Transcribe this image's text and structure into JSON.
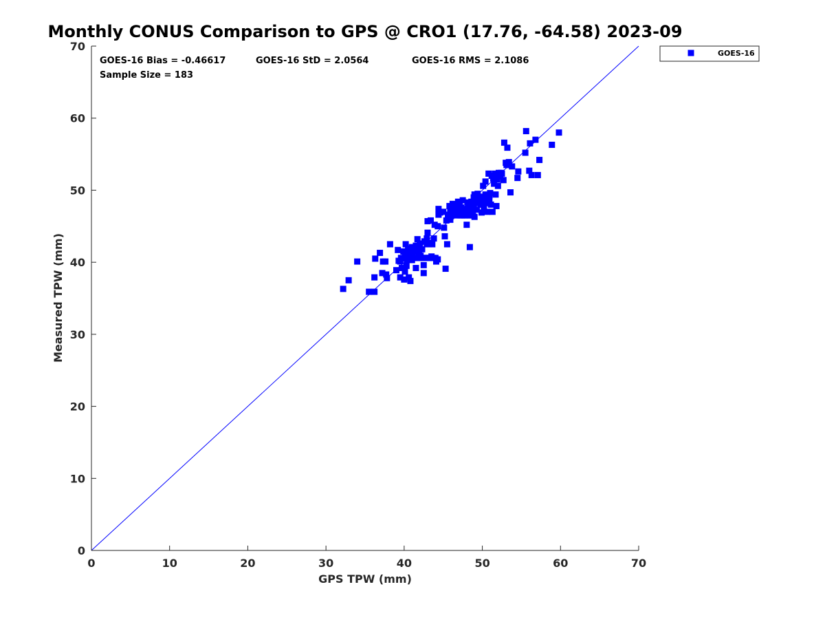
{
  "colors": {
    "series": "#0000ff",
    "axis": "#262626",
    "background": "#ffffff"
  },
  "chart_data": {
    "type": "scatter",
    "title": "Monthly CONUS Comparison to GPS @ CRO1 (17.76, -64.58) 2023-09",
    "xlabel": "GPS TPW (mm)",
    "ylabel": "Measured TPW (mm)",
    "xlim": [
      0,
      70
    ],
    "ylim": [
      0,
      70
    ],
    "xticks": [
      "0",
      "10",
      "20",
      "30",
      "40",
      "50",
      "60",
      "70"
    ],
    "yticks": [
      "0",
      "10",
      "20",
      "30",
      "40",
      "50",
      "60",
      "70"
    ],
    "grid": false,
    "legend_position": "outside-top-right",
    "stats": {
      "bias": "GOES-16 Bias = -0.46617",
      "std": "GOES-16 StD = 2.0564",
      "rms": "GOES-16 RMS = 2.1086",
      "sample": "Sample Size = 183"
    },
    "reference_line": {
      "x": [
        0,
        70
      ],
      "y": [
        0,
        70
      ]
    },
    "series": [
      {
        "name": "GOES-16",
        "marker": "square",
        "color": "#0000ff",
        "points": [
          [
            32.2,
            36.3
          ],
          [
            32.9,
            37.5
          ],
          [
            34.0,
            40.1
          ],
          [
            35.5,
            35.9
          ],
          [
            36.2,
            35.9
          ],
          [
            36.2,
            37.9
          ],
          [
            36.3,
            40.5
          ],
          [
            36.9,
            41.3
          ],
          [
            37.2,
            38.5
          ],
          [
            37.3,
            40.1
          ],
          [
            37.6,
            40.1
          ],
          [
            37.7,
            38.3
          ],
          [
            37.8,
            37.8
          ],
          [
            38.2,
            42.5
          ],
          [
            39.0,
            38.9
          ],
          [
            39.2,
            41.7
          ],
          [
            39.5,
            37.9
          ],
          [
            39.5,
            40.1
          ],
          [
            39.7,
            39.2
          ],
          [
            39.8,
            40.5
          ],
          [
            39.9,
            41.5
          ],
          [
            40.0,
            37.6
          ],
          [
            40.1,
            38.7
          ],
          [
            40.1,
            41.1
          ],
          [
            40.2,
            42.5
          ],
          [
            40.3,
            39.5
          ],
          [
            40.4,
            40.3
          ],
          [
            40.5,
            41.0
          ],
          [
            40.5,
            41.9
          ],
          [
            40.6,
            37.9
          ],
          [
            40.7,
            40.6
          ],
          [
            40.8,
            37.4
          ],
          [
            40.8,
            41.6
          ],
          [
            41.0,
            40.3
          ],
          [
            41.0,
            42.1
          ],
          [
            41.1,
            40.9
          ],
          [
            41.2,
            40.6
          ],
          [
            41.3,
            41.5
          ],
          [
            41.5,
            39.2
          ],
          [
            41.5,
            42.3
          ],
          [
            41.6,
            40.6
          ],
          [
            41.7,
            43.2
          ],
          [
            41.8,
            41.8
          ],
          [
            41.9,
            40.6
          ],
          [
            42.0,
            42.6
          ],
          [
            42.2,
            40.6
          ],
          [
            42.3,
            41.8
          ],
          [
            42.5,
            38.5
          ],
          [
            42.5,
            39.6
          ],
          [
            42.5,
            40.6
          ],
          [
            42.6,
            42.9
          ],
          [
            42.8,
            40.6
          ],
          [
            42.9,
            42.5
          ],
          [
            42.9,
            43.3
          ],
          [
            43.0,
            44.1
          ],
          [
            43.0,
            45.7
          ],
          [
            43.1,
            40.6
          ],
          [
            43.2,
            42.5
          ],
          [
            43.3,
            40.6
          ],
          [
            43.4,
            45.8
          ],
          [
            43.5,
            40.8
          ],
          [
            43.6,
            42.5
          ],
          [
            43.7,
            40.6
          ],
          [
            43.8,
            43.3
          ],
          [
            44.0,
            40.6
          ],
          [
            44.1,
            40.1
          ],
          [
            44.3,
            40.4
          ],
          [
            44.3,
            45.0
          ],
          [
            44.4,
            46.6
          ],
          [
            44.4,
            47.4
          ],
          [
            45.0,
            47.0
          ],
          [
            45.2,
            43.6
          ],
          [
            45.3,
            39.1
          ],
          [
            45.4,
            45.8
          ],
          [
            45.5,
            42.5
          ],
          [
            45.6,
            46.2
          ],
          [
            45.8,
            47.8
          ],
          [
            45.9,
            47.1
          ],
          [
            45.9,
            45.9
          ],
          [
            46.1,
            47.3
          ],
          [
            46.2,
            48.1
          ],
          [
            46.4,
            46.9
          ],
          [
            46.5,
            47.6
          ],
          [
            46.7,
            46.5
          ],
          [
            46.9,
            48.4
          ],
          [
            47.0,
            47.2
          ],
          [
            47.2,
            46.5
          ],
          [
            47.3,
            47.6
          ],
          [
            47.5,
            48.6
          ],
          [
            47.6,
            46.9
          ],
          [
            47.7,
            46.5
          ],
          [
            47.8,
            47.4
          ],
          [
            48.0,
            46.5
          ],
          [
            48.0,
            45.2
          ],
          [
            48.1,
            48.3
          ],
          [
            48.2,
            47.9
          ],
          [
            48.3,
            47.2
          ],
          [
            48.4,
            42.1
          ],
          [
            48.4,
            46.5
          ],
          [
            48.6,
            48.4
          ],
          [
            48.7,
            47.1
          ],
          [
            48.8,
            46.5
          ],
          [
            48.9,
            47.8
          ],
          [
            49.0,
            49.4
          ],
          [
            49.0,
            46.3
          ],
          [
            49.2,
            48.7
          ],
          [
            49.3,
            47.3
          ],
          [
            49.4,
            49.5
          ],
          [
            49.6,
            48.6
          ],
          [
            49.7,
            49.1
          ],
          [
            49.9,
            46.9
          ],
          [
            50.0,
            48.6
          ],
          [
            50.1,
            50.6
          ],
          [
            50.2,
            47.6
          ],
          [
            50.3,
            48.9
          ],
          [
            50.4,
            49.4
          ],
          [
            50.5,
            48.2
          ],
          [
            50.6,
            47.0
          ],
          [
            50.7,
            49.1
          ],
          [
            50.8,
            52.3
          ],
          [
            50.9,
            48.6
          ],
          [
            51.0,
            49.6
          ],
          [
            51.1,
            48.0
          ],
          [
            51.2,
            52.0
          ],
          [
            51.3,
            47.0
          ],
          [
            51.4,
            51.6
          ],
          [
            51.5,
            50.9
          ],
          [
            51.6,
            52.3
          ],
          [
            51.7,
            49.4
          ],
          [
            51.8,
            47.8
          ],
          [
            51.9,
            51.6
          ],
          [
            52.0,
            50.6
          ],
          [
            52.1,
            52.4
          ],
          [
            52.2,
            52.0
          ],
          [
            52.3,
            51.9
          ],
          [
            52.4,
            52.4
          ],
          [
            52.7,
            51.4
          ],
          [
            52.8,
            56.6
          ],
          [
            53.0,
            53.8
          ],
          [
            53.2,
            55.9
          ],
          [
            53.3,
            53.5
          ],
          [
            53.4,
            53.9
          ],
          [
            53.6,
            49.7
          ],
          [
            53.8,
            53.3
          ],
          [
            54.5,
            51.7
          ],
          [
            54.6,
            52.6
          ],
          [
            55.5,
            55.2
          ],
          [
            55.6,
            58.2
          ],
          [
            56.0,
            52.7
          ],
          [
            56.1,
            56.5
          ],
          [
            56.3,
            52.1
          ],
          [
            56.8,
            57.0
          ],
          [
            57.1,
            52.1
          ],
          [
            57.3,
            54.2
          ],
          [
            58.9,
            56.3
          ],
          [
            59.8,
            58.0
          ],
          [
            39.6,
            40.6
          ],
          [
            40.9,
            40.6
          ],
          [
            41.4,
            40.6
          ],
          [
            44.6,
            46.9
          ],
          [
            45.7,
            46.6
          ],
          [
            46.3,
            46.7
          ],
          [
            47.4,
            46.5
          ],
          [
            47.9,
            47.0
          ],
          [
            48.5,
            47.5
          ],
          [
            49.1,
            48.2
          ],
          [
            49.8,
            48.0
          ],
          [
            50.9,
            49.2
          ],
          [
            52.5,
            52.3
          ],
          [
            53.1,
            53.5
          ],
          [
            39.3,
            40.2
          ],
          [
            40.3,
            40.8
          ],
          [
            42.1,
            40.9
          ],
          [
            43.9,
            45.2
          ],
          [
            46.6,
            47.0
          ],
          [
            47.1,
            47.8
          ],
          [
            48.9,
            49.0
          ],
          [
            50.4,
            51.2
          ],
          [
            51.9,
            51.5
          ],
          [
            41.9,
            41.3
          ],
          [
            43.4,
            42.7
          ],
          [
            45.1,
            44.8
          ],
          [
            46.0,
            46.4
          ]
        ]
      }
    ]
  }
}
